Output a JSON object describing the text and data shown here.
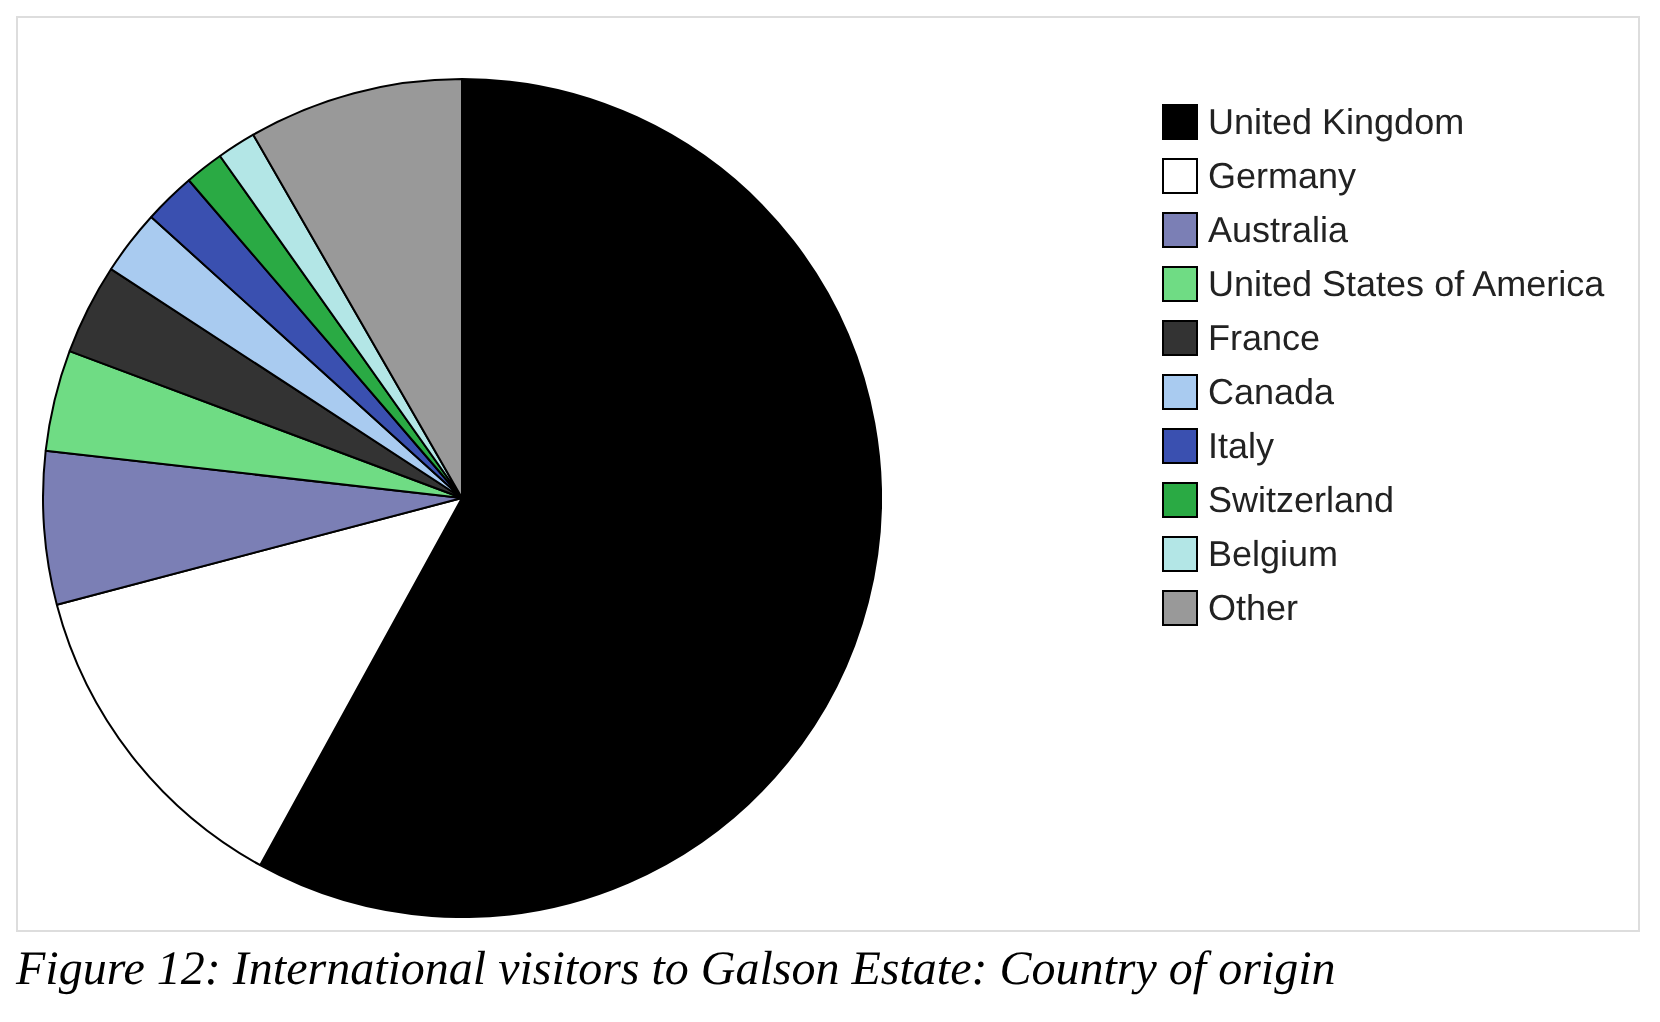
{
  "chart_data": {
    "type": "pie",
    "categories": [
      "United Kingdom",
      "Germany",
      "Australia",
      "United States of America",
      "France",
      "Canada",
      "Italy",
      "Switzerland",
      "Belgium",
      "Other"
    ],
    "values": [
      58.0,
      12.9,
      5.9,
      3.9,
      3.5,
      2.5,
      2.0,
      1.5,
      1.5,
      8.3
    ],
    "colors": [
      "#000000",
      "#ffffff",
      "#7b7fb5",
      "#6fdc84",
      "#333333",
      "#a9cbf0",
      "#3a50b0",
      "#2aaa44",
      "#b3e6e6",
      "#999999"
    ],
    "legend": "right",
    "annotations": [
      "Figure 12: International visitors to Galson Estate: Country of origin"
    ]
  }
}
